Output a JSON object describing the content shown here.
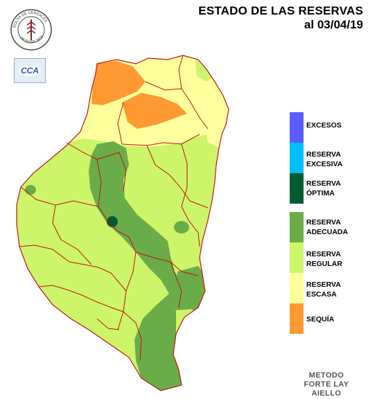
{
  "header": {
    "title": "ESTADO DE LAS RESERVAS",
    "date": "al 03/04/19"
  },
  "logos": {
    "seal_text": "BOLSA DE CEREALES DE ENTRE RIOS",
    "cca_text": "CCA"
  },
  "legend": [
    {
      "label1": "EXCESOS",
      "label2": "",
      "color": "#5a5cff"
    },
    {
      "label1": "RESERVA",
      "label2": "EXCESIVA",
      "color": "#00bfff"
    },
    {
      "label1": "RESERVA",
      "label2": "ÓPTIMA",
      "color": "#005c30"
    },
    {
      "label1": "RESERVA",
      "label2": "ADECUADA",
      "color": "#6aad48"
    },
    {
      "label1": "RESERVA",
      "label2": "REGULAR",
      "color": "#ccf56a"
    },
    {
      "label1": "RESERVA",
      "label2": "ESCASA",
      "color": "#ffff9e"
    },
    {
      "label1": "SEQUÍA",
      "label2": "",
      "color": "#ff9a33"
    }
  ],
  "method": {
    "line1": "METODO",
    "line2": "FORTE LAY",
    "line3": "AIELLO"
  },
  "colors": {
    "regular": "#ccf56a",
    "escasa": "#ffff9e",
    "sequia": "#ff9a33",
    "adecuada": "#6aad48",
    "optima": "#005c30",
    "border": "#c01010"
  }
}
